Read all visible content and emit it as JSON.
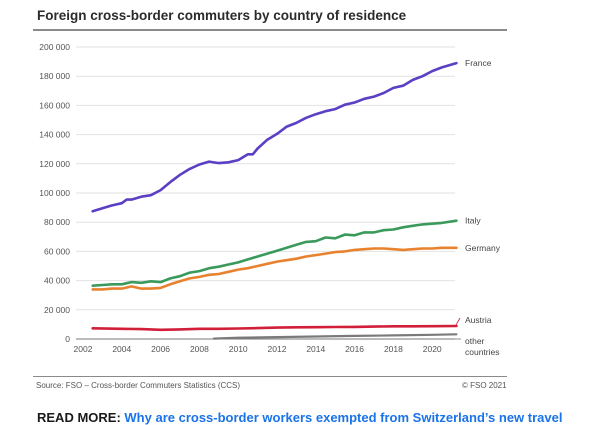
{
  "chart_data": {
    "type": "line",
    "title": "Foreign cross-border commuters by country of residence",
    "xlabel": "",
    "ylabel": "",
    "ylim": [
      0,
      200000
    ],
    "xlim": [
      2002,
      2021.5
    ],
    "yticks": [
      0,
      20000,
      40000,
      60000,
      80000,
      100000,
      120000,
      140000,
      160000,
      180000,
      200000
    ],
    "ytick_labels": [
      "0",
      "20 000",
      "40 000",
      "60 000",
      "80 000",
      "100 000",
      "120 000",
      "140 000",
      "160 000",
      "180 000",
      "200 000"
    ],
    "xticks": [
      2002,
      2004,
      2006,
      2008,
      2010,
      2012,
      2014,
      2016,
      2018,
      2020
    ],
    "xtick_labels": [
      "2002",
      "2004",
      "2006",
      "2008",
      "2010",
      "2012",
      "2014",
      "2016",
      "2018",
      "2020"
    ],
    "grid": true,
    "legend": "inline-right",
    "series": [
      {
        "name": "France",
        "label": "France",
        "color": "#5b3fc4",
        "x": [
          2002.5,
          2003,
          2003.5,
          2004,
          2004.25,
          2004.5,
          2005,
          2005.5,
          2006,
          2006.5,
          2007,
          2007.5,
          2008,
          2008.5,
          2009,
          2009.5,
          2010,
          2010.5,
          2010.75,
          2011,
          2011.5,
          2012,
          2012.5,
          2013,
          2013.5,
          2014,
          2014.5,
          2015,
          2015.5,
          2016,
          2016.5,
          2017,
          2017.5,
          2018,
          2018.5,
          2019,
          2019.5,
          2020,
          2020.5,
          2021.25
        ],
        "values": [
          87500,
          89500,
          91500,
          93000,
          95500,
          95500,
          97500,
          98500,
          102000,
          107500,
          112500,
          116500,
          119500,
          121500,
          120500,
          121000,
          122500,
          126500,
          126500,
          130500,
          136500,
          140500,
          145500,
          148000,
          151500,
          154000,
          156000,
          157500,
          160500,
          162000,
          164500,
          166000,
          168500,
          172000,
          173500,
          177500,
          180000,
          183500,
          186000,
          189000
        ]
      },
      {
        "name": "Italy",
        "label": "Italy",
        "color": "#3a9a5b",
        "x": [
          2002.5,
          2003,
          2003.5,
          2004,
          2004.5,
          2005,
          2005.5,
          2006,
          2006.5,
          2007,
          2007.5,
          2008,
          2008.5,
          2009,
          2009.5,
          2010,
          2010.5,
          2011,
          2011.5,
          2012,
          2012.5,
          2013,
          2013.5,
          2014,
          2014.5,
          2015,
          2015.5,
          2016,
          2016.5,
          2017,
          2017.5,
          2018,
          2018.5,
          2019,
          2019.5,
          2020,
          2020.5,
          2021.25
        ],
        "values": [
          36500,
          37000,
          37500,
          37500,
          39000,
          38500,
          39500,
          39000,
          41500,
          43000,
          45500,
          46500,
          48500,
          49500,
          51000,
          52500,
          54500,
          56500,
          58500,
          60500,
          62500,
          64500,
          66500,
          67000,
          69500,
          69000,
          71500,
          71000,
          73000,
          73000,
          74500,
          75000,
          76500,
          77500,
          78500,
          79000,
          79500,
          81000
        ]
      },
      {
        "name": "Germany",
        "label": "Germany",
        "color": "#e8822e",
        "x": [
          2002.5,
          2003,
          2003.5,
          2004,
          2004.5,
          2005,
          2005.5,
          2006,
          2006.5,
          2007,
          2007.5,
          2008,
          2008.5,
          2009,
          2009.5,
          2010,
          2010.5,
          2011,
          2011.5,
          2012,
          2012.5,
          2013,
          2013.5,
          2014,
          2014.5,
          2015,
          2015.5,
          2016,
          2016.5,
          2017,
          2017.5,
          2018,
          2018.5,
          2019,
          2019.5,
          2020,
          2020.5,
          2021.25
        ],
        "values": [
          34000,
          34000,
          34500,
          34500,
          36000,
          34500,
          34500,
          35000,
          37500,
          39500,
          41500,
          42500,
          44000,
          44500,
          46000,
          47500,
          48500,
          50000,
          51500,
          53000,
          54000,
          55000,
          56500,
          57500,
          58500,
          59500,
          60000,
          61000,
          61500,
          62000,
          62000,
          61500,
          61000,
          61500,
          62000,
          62000,
          62500,
          62500
        ]
      },
      {
        "name": "Austria",
        "label": "Austria",
        "color": "#d11f3a",
        "x": [
          2002.5,
          2004,
          2005,
          2006,
          2007,
          2008,
          2009,
          2010,
          2011,
          2012,
          2013,
          2014,
          2015,
          2016,
          2017,
          2018,
          2019,
          2020,
          2021.25
        ],
        "values": [
          7300,
          7000,
          6800,
          6300,
          6600,
          7000,
          7000,
          7200,
          7500,
          7800,
          8000,
          8100,
          8200,
          8300,
          8500,
          8700,
          8700,
          8800,
          8900
        ]
      },
      {
        "name": "other countries",
        "label_line1": "other",
        "label_line2": "countries",
        "color": "#7a7a7a",
        "x": [
          2008.75,
          2010,
          2012,
          2014,
          2016,
          2018,
          2020,
          2021.25
        ],
        "values": [
          300,
          900,
          1300,
          1700,
          2100,
          2500,
          2900,
          3200
        ]
      }
    ]
  },
  "footer": {
    "source": "Source: FSO – Cross-border Commuters Statistics (CCS)",
    "copyright": "© FSO 2021"
  },
  "read_more": {
    "label": "READ MORE:",
    "link_text": "Why are cross-border workers exempted from Switzerland’s new travel"
  }
}
